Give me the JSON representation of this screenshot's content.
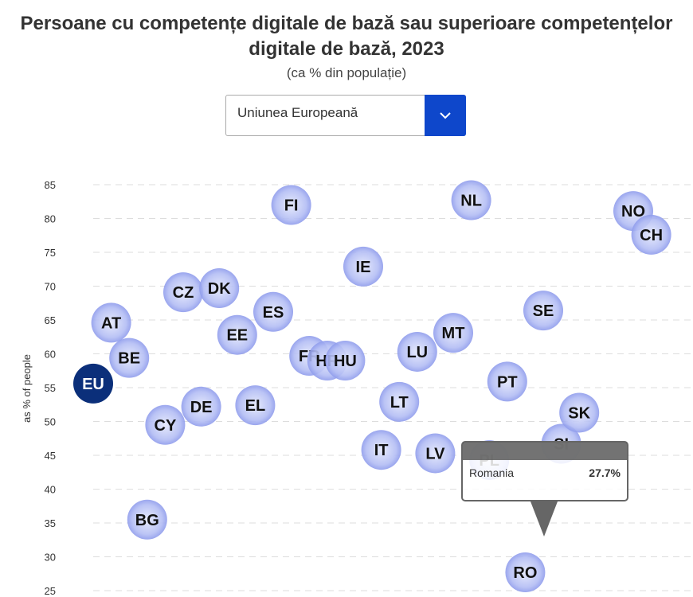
{
  "title": "Persoane cu competențe digitale de bază sau superioare competențelor digitale de bază, 2023",
  "subtitle": "(ca % din populație)",
  "dropdown": {
    "selected": "Uniunea Europeană",
    "icon": "chevron-down-icon"
  },
  "tooltip": {
    "country": "Romania",
    "value": "27.7%"
  },
  "colors": {
    "bubble": "#9aa6ef",
    "eu": "#0b2f7a",
    "accent": "#0e47cb"
  },
  "chart_data": {
    "type": "scatter",
    "title": "Persoane cu competențe digitale de bază sau superioare competențelor digitale de bază, 2023",
    "ylabel": "as % of people",
    "ylim": [
      25,
      85
    ],
    "yticks": [
      85,
      80,
      75,
      70,
      65,
      60,
      55,
      50,
      45,
      40,
      35,
      30,
      25
    ],
    "grid": true,
    "points": [
      {
        "label": "EU",
        "value": 55.6
      },
      {
        "label": "AT",
        "value": 64.6
      },
      {
        "label": "BE",
        "value": 59.4
      },
      {
        "label": "BG",
        "value": 35.5
      },
      {
        "label": "CY",
        "value": 49.5
      },
      {
        "label": "CZ",
        "value": 69.1
      },
      {
        "label": "DE",
        "value": 52.2
      },
      {
        "label": "DK",
        "value": 69.7
      },
      {
        "label": "EE",
        "value": 62.8
      },
      {
        "label": "EL",
        "value": 52.4
      },
      {
        "label": "ES",
        "value": 66.2
      },
      {
        "label": "FI",
        "value": 82.0
      },
      {
        "label": "FR",
        "value": 59.7
      },
      {
        "label": "HR",
        "value": 59.0
      },
      {
        "label": "HU",
        "value": 59.0
      },
      {
        "label": "IE",
        "value": 72.9
      },
      {
        "label": "IT",
        "value": 45.8
      },
      {
        "label": "LT",
        "value": 52.9
      },
      {
        "label": "LU",
        "value": 60.3
      },
      {
        "label": "LV",
        "value": 45.3
      },
      {
        "label": "MT",
        "value": 63.1
      },
      {
        "label": "NL",
        "value": 82.7
      },
      {
        "label": "PL",
        "value": 44.3
      },
      {
        "label": "PT",
        "value": 55.9
      },
      {
        "label": "RO",
        "value": 27.7
      },
      {
        "label": "SE",
        "value": 66.4
      },
      {
        "label": "SI",
        "value": 46.7
      },
      {
        "label": "SK",
        "value": 51.3
      },
      {
        "label": "NO",
        "value": 81.1
      },
      {
        "label": "CH",
        "value": 77.6
      }
    ]
  }
}
